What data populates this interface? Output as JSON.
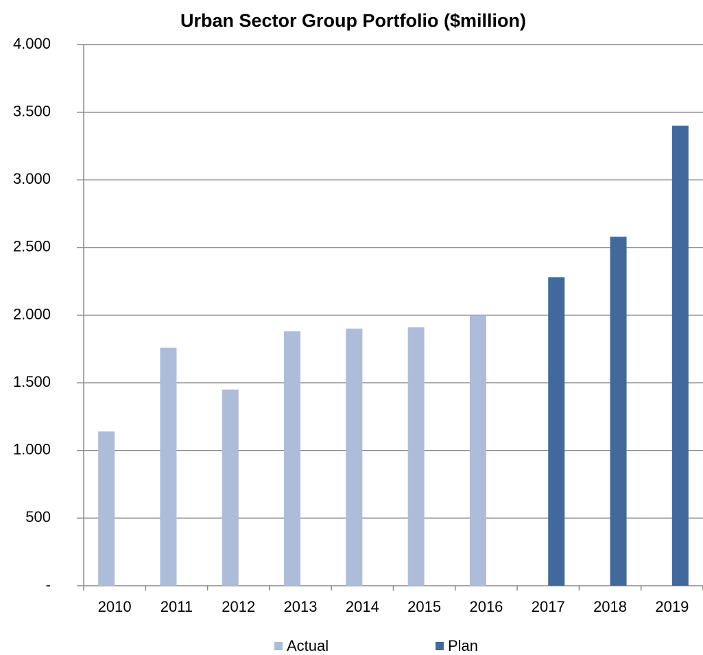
{
  "chart_data": {
    "type": "bar",
    "title": "Urban Sector Group Portfolio ($million)",
    "categories": [
      "2010",
      "2011",
      "2012",
      "2013",
      "2014",
      "2015",
      "2016",
      "2017",
      "2018",
      "2019"
    ],
    "series": [
      {
        "name": "Actual",
        "color": "#adbcd9",
        "values": [
          1140,
          1760,
          1450,
          1880,
          1900,
          1910,
          2000,
          null,
          null,
          null
        ]
      },
      {
        "name": "Plan",
        "color": "#41699c",
        "values": [
          null,
          null,
          null,
          null,
          null,
          null,
          null,
          2280,
          2580,
          3400
        ]
      }
    ],
    "ylim": [
      0,
      4000
    ],
    "yticks": [
      {
        "value": 0,
        "label": "-"
      },
      500,
      {
        "value": 1000,
        "label": "1.000"
      },
      {
        "value": 1500,
        "label": "1.500"
      },
      {
        "value": 2000,
        "label": "2.000"
      },
      {
        "value": 2500,
        "label": "2.500"
      },
      {
        "value": 3000,
        "label": "3.000"
      },
      {
        "value": 3500,
        "label": "3.500"
      },
      {
        "value": 4000,
        "label": "4.000"
      }
    ],
    "grid": true,
    "legend": "bottom"
  }
}
